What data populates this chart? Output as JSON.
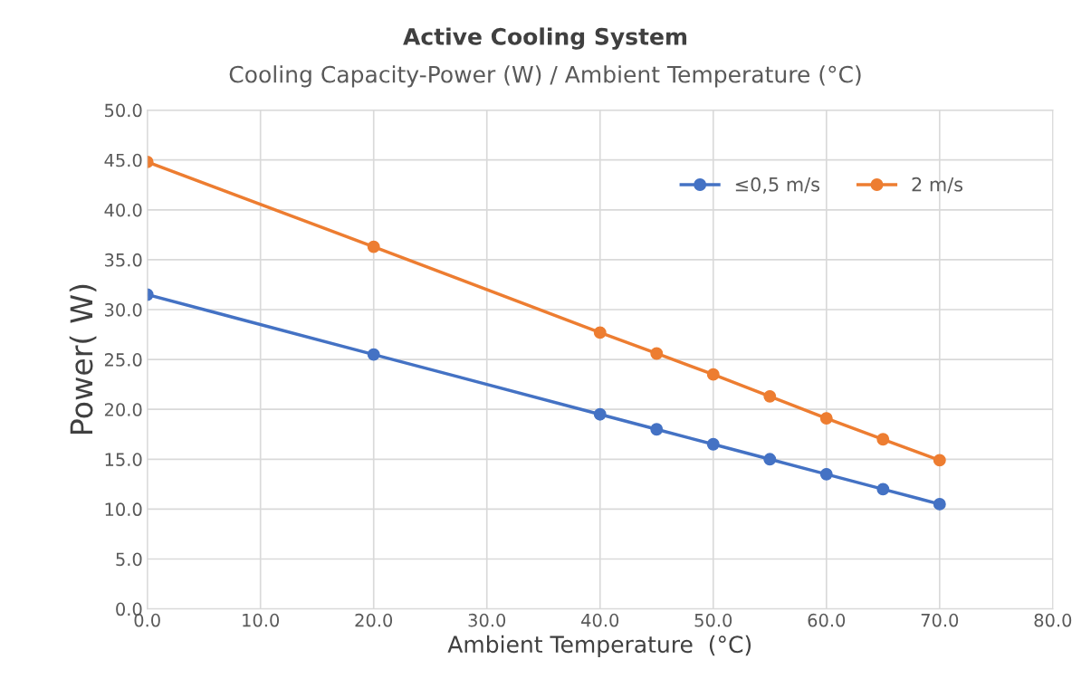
{
  "chart_data": {
    "type": "line",
    "title": "Active Cooling System",
    "subtitle": "Cooling Capacity-Power (W) / Ambient Temperature (°C)",
    "xlabel": "Ambient Temperature  (°C)",
    "ylabel": "Power( W)",
    "x": [
      0,
      20,
      40,
      45,
      50,
      55,
      60,
      65,
      70
    ],
    "series": [
      {
        "name": "≤0,5 m/s",
        "color": "#4472c4",
        "values": [
          31.5,
          25.5,
          19.5,
          18.0,
          16.5,
          15.0,
          13.5,
          12.0,
          10.5
        ]
      },
      {
        "name": "2 m/s",
        "color": "#ed7d31",
        "values": [
          44.8,
          36.3,
          27.7,
          25.6,
          23.5,
          21.3,
          19.1,
          17.0,
          14.9
        ]
      }
    ],
    "xlim": [
      0,
      80
    ],
    "ylim": [
      0,
      50
    ],
    "xticks": [
      {
        "value": 0,
        "label": "0.0"
      },
      {
        "value": 10,
        "label": "10.0"
      },
      {
        "value": 20,
        "label": "20.0"
      },
      {
        "value": 30,
        "label": "30.0"
      },
      {
        "value": 40,
        "label": "40.0"
      },
      {
        "value": 50,
        "label": "50.0"
      },
      {
        "value": 60,
        "label": "60.0"
      },
      {
        "value": 70,
        "label": "70.0"
      },
      {
        "value": 80,
        "label": "80.0"
      }
    ],
    "yticks": [
      {
        "value": 0,
        "label": "0.0"
      },
      {
        "value": 5,
        "label": "5.0"
      },
      {
        "value": 10,
        "label": "10.0"
      },
      {
        "value": 15,
        "label": "15.0"
      },
      {
        "value": 20,
        "label": "20.0"
      },
      {
        "value": 25,
        "label": "25.0"
      },
      {
        "value": 30,
        "label": "30.0"
      },
      {
        "value": 35,
        "label": "35.0"
      },
      {
        "value": 40,
        "label": "40.0"
      },
      {
        "value": 45,
        "label": "45.0"
      },
      {
        "value": 50,
        "label": "50.0"
      }
    ],
    "grid": true,
    "legend": "top right",
    "marker": "circle",
    "line_style": "solid"
  }
}
